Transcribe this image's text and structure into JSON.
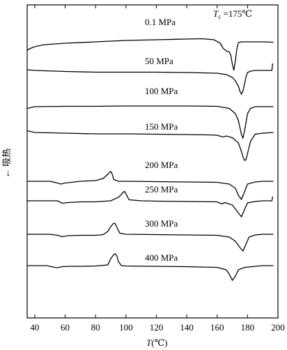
{
  "chart_data": {
    "type": "line",
    "annotation": {
      "italic": "T",
      "sub": "c",
      "rest": " =175℃"
    },
    "xlabel": {
      "italic": "T",
      "rest": "(℃)"
    },
    "ylabel": "← 吸热",
    "xlim": [
      35,
      200
    ],
    "xticks": [
      40,
      60,
      80,
      100,
      120,
      140,
      160,
      180,
      200
    ],
    "grid": false,
    "legend": "none",
    "series": [
      {
        "name": "0.1 MPa",
        "x": [
          35,
          37,
          40,
          45,
          50,
          60,
          80,
          100,
          120,
          140,
          150,
          158,
          162,
          164,
          166,
          168,
          169,
          170,
          171,
          172,
          173,
          174,
          176,
          180,
          190,
          197
        ],
        "y": [
          -20,
          -15,
          -10,
          -5,
          -3,
          0,
          4,
          8,
          10,
          12,
          13,
          10,
          0,
          -15,
          -22,
          -25,
          -35,
          -60,
          -78,
          -50,
          -15,
          2,
          4,
          4,
          4,
          3
        ]
      },
      {
        "name": "50 MPa",
        "x": [
          35,
          40,
          60,
          80,
          100,
          120,
          140,
          160,
          166,
          170,
          172,
          174,
          175,
          176,
          177,
          178,
          179,
          180,
          182,
          185,
          190,
          196,
          196.5
        ],
        "y": [
          2,
          0,
          -3,
          -5,
          -5,
          -5,
          -6,
          -8,
          -12,
          -20,
          -30,
          -45,
          -60,
          -68,
          -58,
          -40,
          -18,
          -6,
          -2,
          0,
          0,
          0,
          20
        ]
      },
      {
        "name": "100 MPa",
        "x": [
          35,
          40,
          60,
          80,
          100,
          120,
          140,
          160,
          168,
          172,
          174,
          175,
          176,
          177,
          178,
          179,
          180,
          182,
          185,
          190,
          197
        ],
        "y": [
          -5,
          0,
          1,
          1,
          2,
          2,
          2,
          1,
          -5,
          -20,
          -40,
          -60,
          -80,
          -90,
          -70,
          -45,
          -20,
          -5,
          0,
          0,
          0
        ]
      },
      {
        "name": "150 MPa",
        "x": [
          35,
          40,
          60,
          80,
          100,
          120,
          140,
          155,
          160,
          163,
          164,
          166,
          170,
          174,
          176,
          177,
          178,
          179,
          180,
          182,
          185,
          190,
          197
        ],
        "y": [
          5,
          0,
          -2,
          -4,
          -4,
          -5,
          -6,
          -7,
          -8,
          -12,
          -13,
          -10,
          -15,
          -30,
          -55,
          -70,
          -80,
          -78,
          -60,
          -25,
          -5,
          -2,
          0
        ]
      },
      {
        "name": "200 MPa",
        "x": [
          35,
          40,
          50,
          55,
          57,
          60,
          70,
          80,
          85,
          88,
          89,
          90,
          91,
          92,
          95,
          100,
          120,
          140,
          160,
          168,
          172,
          174,
          176,
          178,
          180,
          185,
          190,
          197
        ],
        "y": [
          0,
          0,
          0,
          -5,
          -8,
          -5,
          0,
          2,
          8,
          20,
          25,
          28,
          20,
          5,
          0,
          0,
          -1,
          -2,
          -3,
          -8,
          -20,
          -40,
          -52,
          -30,
          -8,
          -2,
          0,
          0
        ]
      },
      {
        "name": "250 MPa",
        "x": [
          35,
          40,
          50,
          55,
          58,
          62,
          70,
          80,
          90,
          95,
          97,
          98,
          99,
          100,
          102,
          110,
          120,
          140,
          160,
          163,
          165,
          170,
          174,
          176,
          178,
          180,
          185,
          190,
          196,
          196.5
        ],
        "y": [
          0,
          0,
          0,
          0,
          -7,
          -5,
          -3,
          -3,
          0,
          10,
          18,
          24,
          27,
          20,
          3,
          0,
          -1,
          -2,
          -3,
          -9,
          -5,
          -12,
          -35,
          -46,
          -25,
          -6,
          -2,
          0,
          0,
          12
        ]
      },
      {
        "name": "300 MPa",
        "x": [
          35,
          40,
          50,
          55,
          58,
          62,
          70,
          80,
          85,
          88,
          90,
          92,
          93,
          94,
          96,
          100,
          120,
          140,
          160,
          168,
          172,
          175,
          177,
          179,
          181,
          185,
          190,
          197
        ],
        "y": [
          0,
          0,
          0,
          -3,
          -7,
          -4,
          -3,
          -3,
          -1,
          8,
          22,
          32,
          30,
          20,
          3,
          0,
          -1,
          -2,
          -3,
          -8,
          -20,
          -38,
          -48,
          -28,
          -8,
          -2,
          0,
          0
        ]
      },
      {
        "name": "400 MPa",
        "x": [
          35,
          40,
          48,
          52,
          55,
          58,
          62,
          70,
          80,
          88,
          90,
          92,
          93,
          94,
          95,
          97,
          100,
          120,
          140,
          160,
          166,
          168,
          170,
          172,
          174,
          178,
          185,
          190,
          197
        ],
        "y": [
          0,
          0,
          0,
          -4,
          -6,
          -3,
          -2,
          -2,
          -1,
          2,
          20,
          32,
          34,
          28,
          12,
          0,
          -1,
          -2,
          -3,
          -5,
          -12,
          -25,
          -42,
          -30,
          -12,
          -5,
          -2,
          0,
          0
        ]
      }
    ]
  }
}
